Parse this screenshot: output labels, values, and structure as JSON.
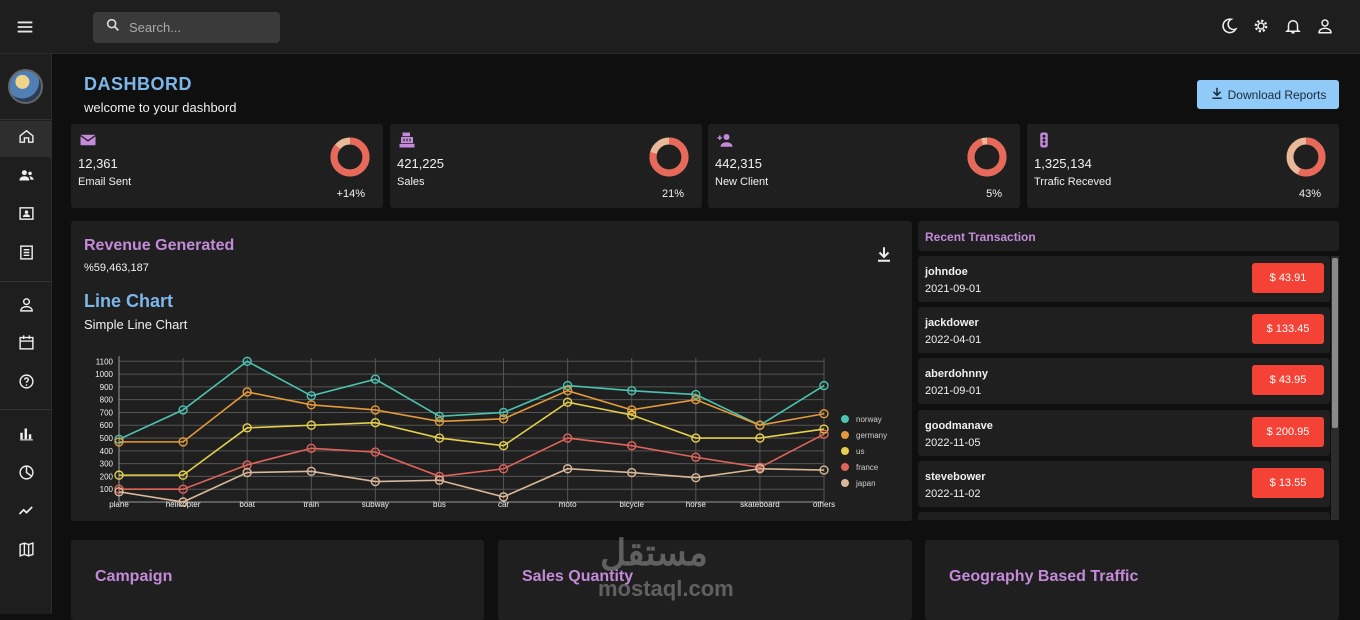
{
  "topbar": {
    "search_placeholder": "Search..."
  },
  "header": {
    "title": "DASHBORD",
    "subtitle": "welcome to your dashbord",
    "download_label": "Download Reports"
  },
  "stats": [
    {
      "icon": "email-icon",
      "value": "12,361",
      "label": "Email Sent",
      "pct": "+14%",
      "fraction": 0.14
    },
    {
      "icon": "cash-register-icon",
      "value": "421,225",
      "label": "Sales",
      "pct": "21%",
      "fraction": 0.21
    },
    {
      "icon": "person-add-icon",
      "value": "442,315",
      "label": "New Client",
      "pct": "5%",
      "fraction": 0.05
    },
    {
      "icon": "traffic-icon",
      "value": "1,325,134",
      "label": "Trrafic Receved",
      "pct": "43%",
      "fraction": 0.43
    }
  ],
  "revenue": {
    "title": "Revenue Generated",
    "value": "%59,463,187"
  },
  "chart_header": {
    "title": "Line Chart",
    "subtitle": "Simple Line Chart"
  },
  "chart_data": {
    "type": "line",
    "categories": [
      "plane",
      "helicopter",
      "boat",
      "train",
      "subway",
      "bus",
      "car",
      "moto",
      "bicycle",
      "horse",
      "skateboard",
      "others"
    ],
    "yticks": [
      100,
      200,
      300,
      400,
      500,
      600,
      700,
      800,
      900,
      1000,
      1100
    ],
    "ylim": [
      0,
      1150
    ],
    "legend_position": "right",
    "series": [
      {
        "name": "norway",
        "color": "#4cc2b0",
        "values": [
          490,
          720,
          1100,
          830,
          960,
          670,
          700,
          910,
          870,
          840,
          600,
          910
        ]
      },
      {
        "name": "germany",
        "color": "#e29a3b",
        "values": [
          470,
          470,
          860,
          760,
          720,
          630,
          650,
          870,
          720,
          800,
          600,
          690
        ]
      },
      {
        "name": "us",
        "color": "#e5cf4c",
        "values": [
          210,
          210,
          580,
          600,
          620,
          500,
          440,
          780,
          680,
          500,
          500,
          570
        ]
      },
      {
        "name": "france",
        "color": "#e0645a",
        "values": [
          100,
          100,
          290,
          420,
          390,
          200,
          260,
          500,
          440,
          350,
          270,
          530
        ]
      },
      {
        "name": "japan",
        "color": "#d8b898",
        "values": [
          80,
          0,
          230,
          240,
          160,
          170,
          40,
          260,
          230,
          190,
          260,
          250
        ]
      }
    ]
  },
  "transactions": {
    "title": "Recent Transaction",
    "items": [
      {
        "user": "johndoe",
        "date": "2021-09-01",
        "amount": "$ 43.91"
      },
      {
        "user": "jackdower",
        "date": "2022-04-01",
        "amount": "$ 133.45"
      },
      {
        "user": "aberdohnny",
        "date": "2021-09-01",
        "amount": "$ 43.95"
      },
      {
        "user": "goodmanave",
        "date": "2022-11-05",
        "amount": "$ 200.95"
      },
      {
        "user": "stevebower",
        "date": "2022-11-02",
        "amount": "$ 13.55"
      }
    ]
  },
  "bottom_cards": [
    "Campaign",
    "Sales Quantity",
    "Geography Based Traffic"
  ],
  "watermark": {
    "arabic": "مستقل",
    "latin": "mostaql.com"
  },
  "colors": {
    "accent_blue": "#7db7ea",
    "accent_purple": "#c48ad9",
    "danger": "#f44336",
    "button": "#90caf9"
  }
}
